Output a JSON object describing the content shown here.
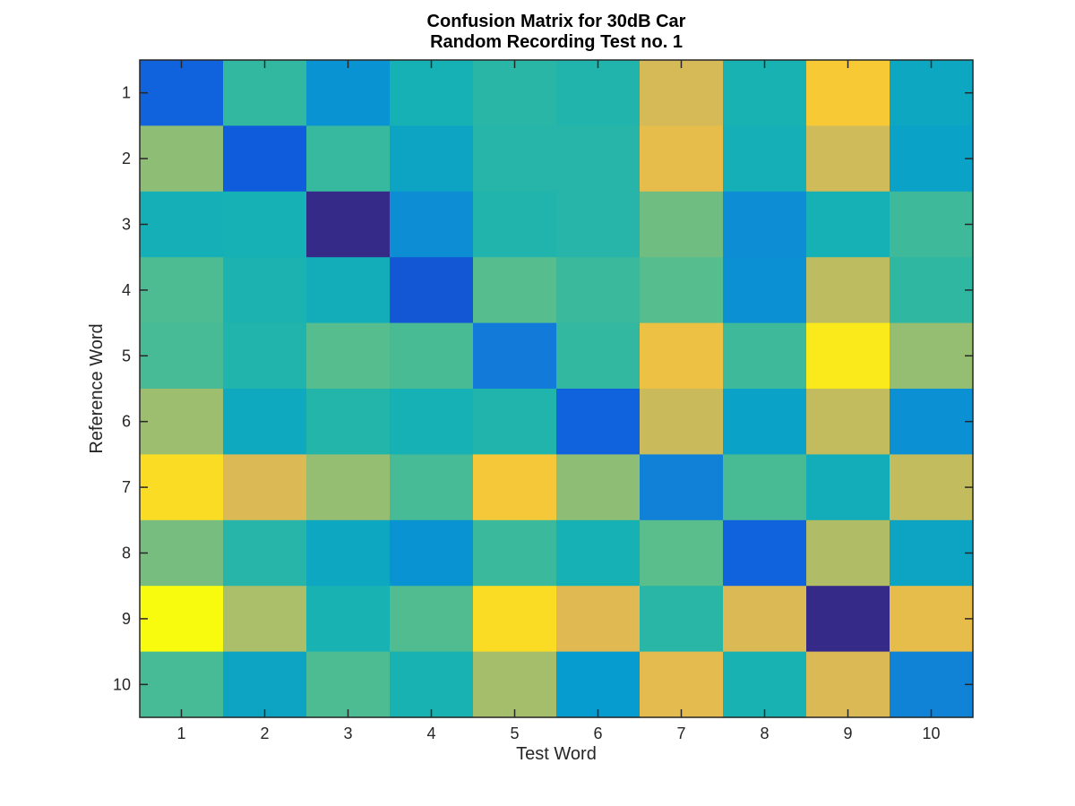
{
  "chart_data": {
    "type": "heatmap",
    "title": [
      "Confusion Matrix for 30dB Car",
      "Random Recording Test no. 1"
    ],
    "xlabel": "Test Word",
    "ylabel": "Reference Word",
    "x_tick_labels": [
      "1",
      "2",
      "3",
      "4",
      "5",
      "6",
      "7",
      "8",
      "9",
      "10"
    ],
    "y_tick_labels": [
      "1",
      "2",
      "3",
      "4",
      "5",
      "6",
      "7",
      "8",
      "9",
      "10"
    ],
    "colormap": "parula",
    "colorbar": false,
    "grid": false,
    "values": [
      [
        0.12,
        0.5,
        0.27,
        0.4,
        0.47,
        0.44,
        0.78,
        0.41,
        0.88,
        0.35
      ],
      [
        0.67,
        0.1,
        0.51,
        0.34,
        0.46,
        0.46,
        0.82,
        0.39,
        0.77,
        0.33
      ],
      [
        0.39,
        0.4,
        0.0,
        0.25,
        0.44,
        0.46,
        0.63,
        0.25,
        0.4,
        0.53
      ],
      [
        0.57,
        0.42,
        0.38,
        0.09,
        0.59,
        0.52,
        0.59,
        0.26,
        0.74,
        0.49
      ],
      [
        0.55,
        0.44,
        0.59,
        0.56,
        0.19,
        0.5,
        0.84,
        0.53,
        0.96,
        0.68
      ],
      [
        0.69,
        0.36,
        0.45,
        0.4,
        0.44,
        0.12,
        0.76,
        0.33,
        0.75,
        0.26
      ],
      [
        0.93,
        0.79,
        0.68,
        0.55,
        0.87,
        0.67,
        0.21,
        0.56,
        0.38,
        0.75
      ],
      [
        0.64,
        0.46,
        0.35,
        0.27,
        0.52,
        0.4,
        0.6,
        0.12,
        0.72,
        0.34
      ],
      [
        1.0,
        0.71,
        0.41,
        0.58,
        0.93,
        0.8,
        0.47,
        0.79,
        0.0,
        0.82
      ],
      [
        0.55,
        0.34,
        0.57,
        0.41,
        0.7,
        0.3,
        0.81,
        0.41,
        0.79,
        0.22
      ]
    ]
  }
}
